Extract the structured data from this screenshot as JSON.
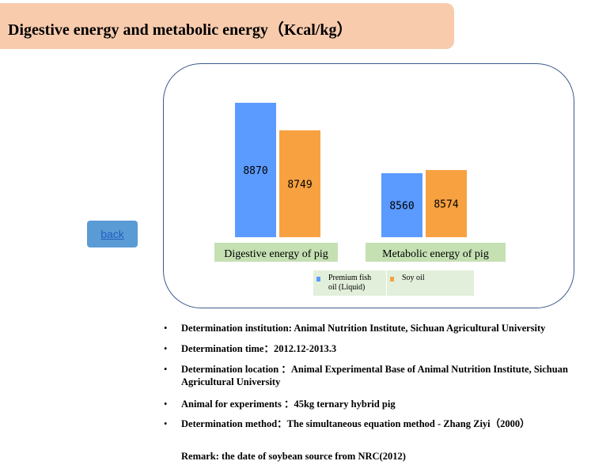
{
  "header": {
    "title": "Digestive energy and metabolic energy（Kcal/kg）"
  },
  "back_button": {
    "label": "back"
  },
  "colors": {
    "fish_oil": "#5b9bff",
    "soy_oil": "#f7a141",
    "label_band": "#c5e0b3",
    "title_band": "#f8cbad"
  },
  "chart_data": {
    "type": "bar",
    "categories": [
      "Digestive energy of pig",
      "Metabolic energy of pig"
    ],
    "series": [
      {
        "name": "Premium fish oil (Liquid)",
        "values": [
          8870,
          8560
        ]
      },
      {
        "name": "Soy oil",
        "values": [
          8749,
          8574
        ]
      }
    ],
    "legend_position": "bottom",
    "grid": false
  },
  "notes": [
    "Determination institution: Animal Nutrition Institute, Sichuan Agricultural University",
    "Determination time：2012.12-2013.3",
    "Determination location ：Animal Experimental Base of Animal Nutrition Institute, Sichuan Agricultural University",
    "Animal for experiments ：45kg ternary hybrid pig",
    "Determination method：The simultaneous equation method - Zhang Ziyi（2000）"
  ],
  "remark": "Remark: the date of soybean source from NRC(2012)"
}
